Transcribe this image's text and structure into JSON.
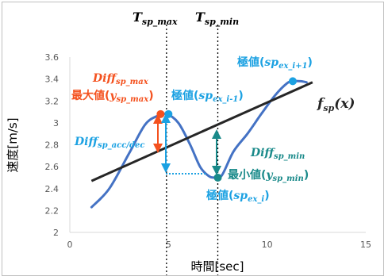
{
  "chart_data": {
    "type": "line",
    "xlabel": "時間[sec]",
    "ylabel": "速度[m/s]",
    "xlim": [
      0,
      15
    ],
    "ylim": [
      2,
      3.6
    ],
    "xticks": [
      "0",
      "5",
      "10",
      "15"
    ],
    "yticks": [
      "2",
      "2.2",
      "2.4",
      "2.6",
      "2.8",
      "3",
      "3.2",
      "3.4",
      "3.6"
    ],
    "grid": false,
    "series": [
      {
        "role": "speed",
        "color": "#4472c4",
        "x": [
          1.1,
          2.0,
          3.0,
          3.8,
          4.4,
          4.9,
          5.5,
          6.1,
          6.6,
          7.0,
          7.3,
          7.7,
          8.3,
          9.0,
          9.7,
          10.4,
          11.0,
          11.3,
          11.7,
          12.0
        ],
        "y": [
          2.23,
          2.4,
          2.72,
          2.98,
          3.06,
          3.08,
          3.0,
          2.8,
          2.6,
          2.52,
          2.5,
          2.52,
          2.74,
          2.9,
          3.08,
          3.25,
          3.36,
          3.38,
          3.38,
          3.37
        ]
      },
      {
        "role": "trend",
        "name": "f_sp(x)",
        "color": "#262626",
        "x": [
          1.1,
          12.3
        ],
        "y": [
          2.47,
          3.37
        ]
      }
    ],
    "points": [
      {
        "role": "max",
        "x": 4.6,
        "y": 3.08,
        "color": "#f4511e"
      },
      {
        "role": "ex_i-1",
        "x": 5.0,
        "y": 3.08,
        "color": "#1ba1e2"
      },
      {
        "role": "ex_i",
        "x": 7.5,
        "y": 2.5,
        "color": "#1a8a8a"
      },
      {
        "role": "ex_i+1",
        "x": 11.3,
        "y": 3.38,
        "color": "#1ba1e2"
      }
    ],
    "vlines": [
      {
        "x": 4.9,
        "label": "T_sp_max"
      },
      {
        "x": 7.5,
        "label": "T_sp_min"
      }
    ]
  },
  "labels": {
    "t_max_main": "T",
    "t_max_sub": "sp_max",
    "t_min_main": "T",
    "t_min_sub": "sp_min",
    "ex_ip1_pre": "極値(",
    "ex_ip1_sp": "sp",
    "ex_ip1_sub": "ex_i+1",
    "ex_ip1_post": ")",
    "ex_im1_pre": "極値(",
    "ex_im1_sp": "sp",
    "ex_im1_sub": "ex_i-1",
    "ex_im1_post": ")",
    "ex_i_pre": "極値(",
    "ex_i_sp": "sp",
    "ex_i_sub": "ex_i",
    "ex_i_post": ")",
    "diff_max_main": "Diff",
    "diff_max_sub": "sp_max",
    "max_val_pre": "最大値(",
    "max_val_y": "y",
    "max_val_sub": "sp_max",
    "max_val_post": ")",
    "diff_acc_main": "Diff",
    "diff_acc_sub": "sp_acc/dec",
    "diff_min_main": "Diff",
    "diff_min_sub": "sp_min",
    "min_val_pre": "最小値(",
    "min_val_y": "y",
    "min_val_sub": "sp_min",
    "min_val_post": ")",
    "fsp_main": "f",
    "fsp_sub": "sp",
    "fsp_post": "(x)"
  }
}
